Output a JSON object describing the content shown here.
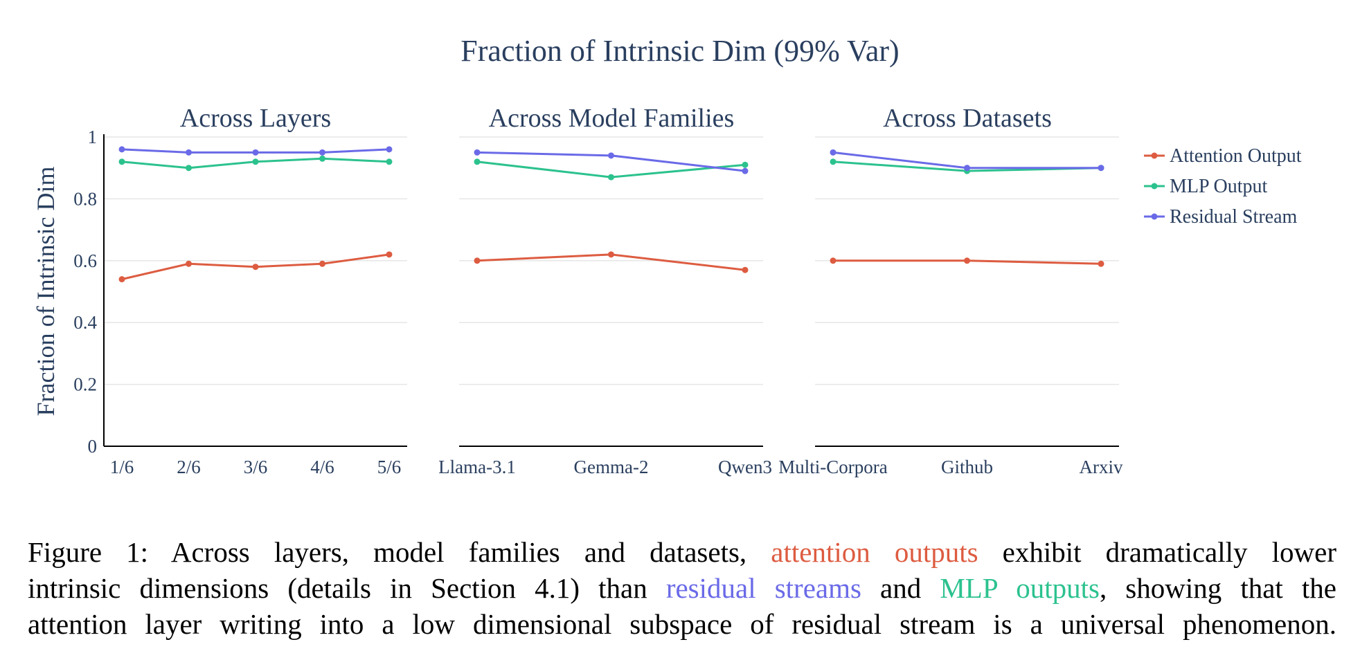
{
  "figure": {
    "title": "Fraction of Intrinsic Dim (99% Var)",
    "ylabel": "Fraction of Intrinsic Dim"
  },
  "colors": {
    "attention": "#dd5c41",
    "mlp": "#2cc28e",
    "residual": "#6a6ae8",
    "text": "#2a3f5f"
  },
  "legend": [
    {
      "name": "Attention Output",
      "color": "#dd5c41"
    },
    {
      "name": "MLP Output",
      "color": "#2cc28e"
    },
    {
      "name": "Residual Stream",
      "color": "#6a6ae8"
    }
  ],
  "chart_data": [
    {
      "type": "line",
      "title": "Across Layers",
      "categories": [
        "1/6",
        "2/6",
        "3/6",
        "4/6",
        "5/6"
      ],
      "ylim": [
        0,
        1
      ],
      "yticks": [
        "0",
        "0.2",
        "0.4",
        "0.6",
        "0.8",
        "1"
      ],
      "grid": true,
      "series": [
        {
          "name": "Attention Output",
          "values": [
            0.54,
            0.59,
            0.58,
            0.59,
            0.62
          ]
        },
        {
          "name": "MLP Output",
          "values": [
            0.92,
            0.9,
            0.92,
            0.93,
            0.92
          ]
        },
        {
          "name": "Residual Stream",
          "values": [
            0.96,
            0.95,
            0.95,
            0.95,
            0.96
          ]
        }
      ]
    },
    {
      "type": "line",
      "title": "Across Model Families",
      "categories": [
        "Llama-3.1",
        "Gemma-2",
        "Qwen3"
      ],
      "ylim": [
        0,
        1
      ],
      "grid": true,
      "series": [
        {
          "name": "Attention Output",
          "values": [
            0.6,
            0.62,
            0.57
          ]
        },
        {
          "name": "MLP Output",
          "values": [
            0.92,
            0.87,
            0.91
          ]
        },
        {
          "name": "Residual Stream",
          "values": [
            0.95,
            0.94,
            0.89
          ]
        }
      ]
    },
    {
      "type": "line",
      "title": "Across Datasets",
      "categories": [
        "Multi-Corpora",
        "Github",
        "Arxiv"
      ],
      "ylim": [
        0,
        1
      ],
      "grid": true,
      "series": [
        {
          "name": "Attention Output",
          "values": [
            0.6,
            0.6,
            0.59
          ]
        },
        {
          "name": "MLP Output",
          "values": [
            0.92,
            0.89,
            0.9
          ]
        },
        {
          "name": "Residual Stream",
          "values": [
            0.95,
            0.9,
            0.9
          ]
        }
      ]
    }
  ],
  "caption": {
    "line1_a": "Figure 1: Across layers, model families and datasets, ",
    "line1_attn": "attention outputs",
    "line1_b": " exhibit dramatically lower",
    "line2_a": "intrinsic dimensions (details in Section 4.1) than ",
    "line2_resid": "residual streams",
    "line2_b": " and ",
    "line2_mlp": "MLP outputs",
    "line2_c": ", showing that the",
    "line3": "attention layer writing into a low dimensional subspace of residual stream is a universal phenomenon."
  }
}
